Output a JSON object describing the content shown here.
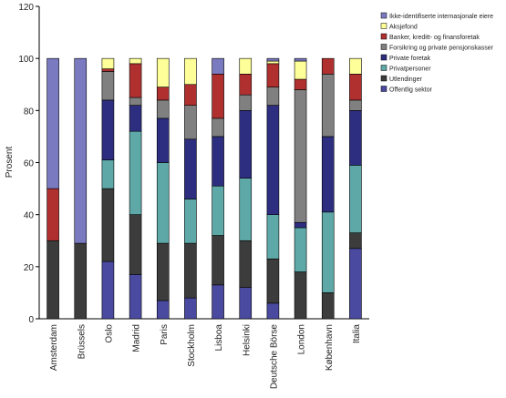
{
  "chart_data": {
    "type": "bar",
    "stacked": true,
    "ylabel": "Prosent",
    "ylim": [
      0,
      120
    ],
    "yticks": [
      0,
      20,
      40,
      60,
      80,
      100,
      120
    ],
    "grid": false,
    "legend_position": "top-right",
    "categories": [
      "Amsterdam",
      "Brüssels",
      "Oslo",
      "Madrid",
      "Paris",
      "Stockholm",
      "Lisboa",
      "Helsinki",
      "Deutsche Börse",
      "London",
      "København",
      "Italia"
    ],
    "series": [
      {
        "name": "Offentlig sektor",
        "color": "#4a4aa0",
        "values": [
          0,
          0,
          22,
          17,
          7,
          8,
          13,
          12,
          6,
          0,
          0,
          27
        ]
      },
      {
        "name": "Utlendinger",
        "color": "#3c3c3c",
        "values": [
          30,
          29,
          28,
          23,
          22,
          21,
          19,
          18,
          17,
          18,
          10,
          6
        ]
      },
      {
        "name": "Privatpersoner",
        "color": "#5fa8a8",
        "values": [
          0,
          0,
          11,
          32,
          31,
          17,
          19,
          24,
          17,
          17,
          31,
          26
        ]
      },
      {
        "name": "Private foretak",
        "color": "#2e2e80",
        "values": [
          0,
          0,
          23,
          10,
          17,
          23,
          19,
          26,
          42,
          2,
          29,
          21
        ]
      },
      {
        "name": "Forsikring og private pensjonskasser",
        "color": "#808080",
        "values": [
          0,
          0,
          11,
          3,
          7,
          13,
          7,
          6,
          7,
          51,
          24,
          4
        ]
      },
      {
        "name": "Banker, kreditt- og finansforetak",
        "color": "#b03030",
        "values": [
          20,
          0,
          1,
          13,
          5,
          8,
          17,
          8,
          9,
          4,
          6,
          10
        ]
      },
      {
        "name": "Aksjefond",
        "color": "#ffff99",
        "values": [
          0,
          0,
          4,
          2,
          11,
          10,
          0,
          6,
          1,
          7,
          0,
          6
        ]
      },
      {
        "name": "Ikke-identifiserte internasjonale eiere",
        "color": "#7a7ac0",
        "values": [
          50,
          71,
          0,
          0,
          0,
          0,
          6,
          0,
          1,
          1,
          0,
          0
        ]
      }
    ]
  }
}
